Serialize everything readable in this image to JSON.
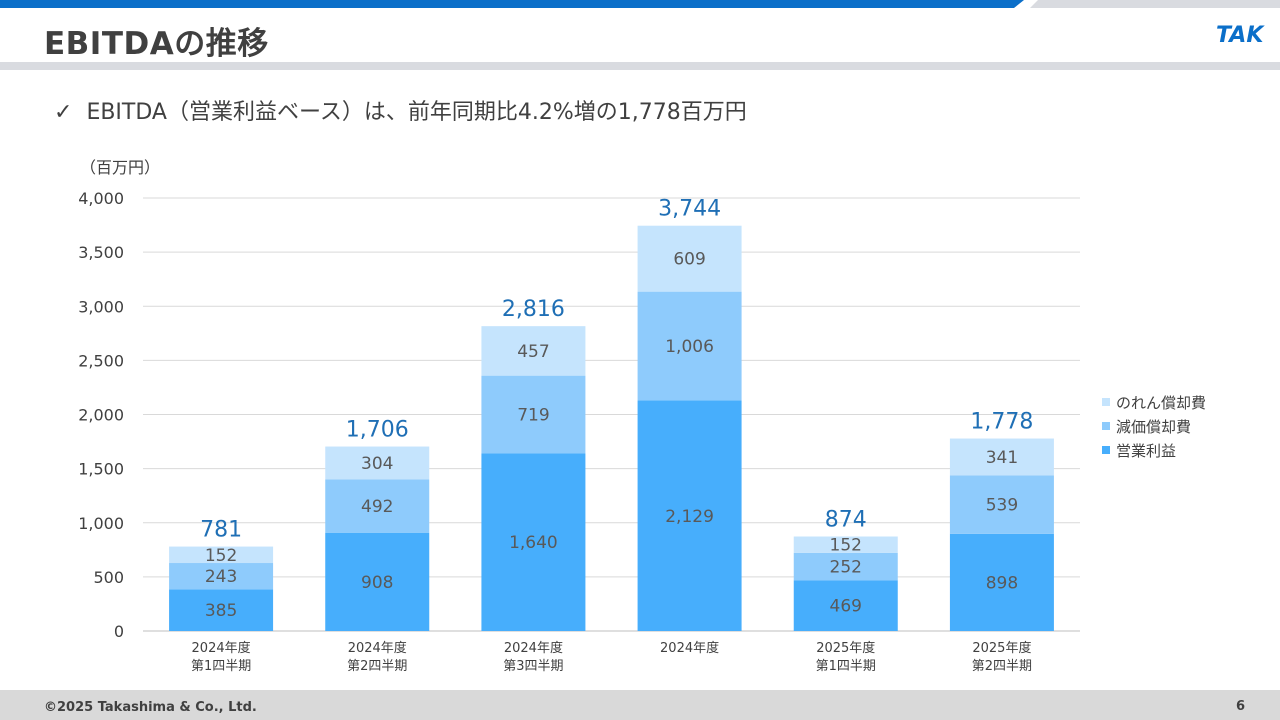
{
  "header": {
    "title": "EBITDAの推移",
    "bar_color": "#0b6fc9",
    "logo_text": "TAK"
  },
  "bullet": {
    "check": "✓",
    "text": "EBITDA（営業利益ベース）は、前年同期比4.2%増の1,778百万円"
  },
  "chart_data": {
    "type": "bar",
    "stacked": true,
    "unit_label": "（百万円）",
    "categories": [
      [
        "2024年度",
        "第1四半期"
      ],
      [
        "2024年度",
        "第2四半期"
      ],
      [
        "2024年度",
        "第3四半期"
      ],
      [
        "2024年度"
      ],
      [
        "2025年度",
        "第1四半期"
      ],
      [
        "2025年度",
        "第2四半期"
      ]
    ],
    "series": [
      {
        "name": "営業利益",
        "color": "#47aefc",
        "values": [
          385,
          908,
          1640,
          2129,
          469,
          898
        ]
      },
      {
        "name": "減価償却費",
        "color": "#8ecbfc",
        "values": [
          243,
          492,
          719,
          1006,
          252,
          539
        ]
      },
      {
        "name": "のれん償却費",
        "color": "#c5e4fd",
        "values": [
          152,
          304,
          457,
          609,
          152,
          341
        ]
      }
    ],
    "totals": [
      781,
      1706,
      2816,
      3744,
      874,
      1778
    ],
    "ylim": [
      0,
      4000
    ],
    "yticks": [
      0,
      500,
      1000,
      1500,
      2000,
      2500,
      3000,
      3500,
      4000
    ],
    "ytick_labels": [
      "0",
      "500",
      "1,000",
      "1,500",
      "2,000",
      "2,500",
      "3,000",
      "3,500",
      "4,000"
    ],
    "legend_position": "right",
    "grid": true,
    "total_label_color": "#1f6fb5"
  },
  "legend": {
    "items": [
      {
        "label": "のれん償却費",
        "color": "#c5e4fd"
      },
      {
        "label": "減価償却費",
        "color": "#8ecbfc"
      },
      {
        "label": "営業利益",
        "color": "#47aefc"
      }
    ]
  },
  "footer": {
    "copyright": "©2025 Takashima & Co., Ltd.",
    "page_number": "6"
  }
}
